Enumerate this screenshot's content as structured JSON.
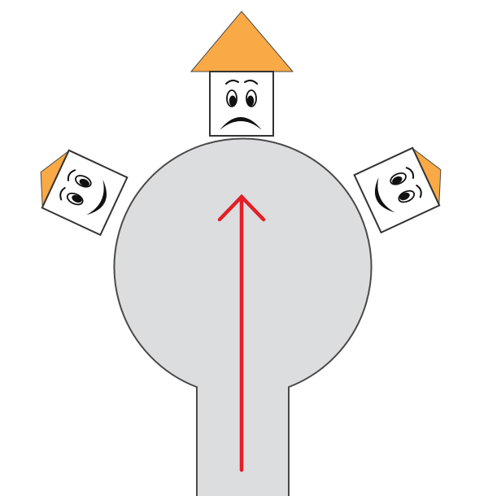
{
  "colors": {
    "road_fill": "#dcdddf",
    "road_stroke": "#4a4a4a",
    "arrow": "#e31e24",
    "roof": "#f9a945",
    "roof_stroke": "#4a4a4a",
    "house_fill": "#ffffff",
    "house_stroke": "#333333",
    "face_ink": "#111111"
  },
  "roundabout": {
    "shape": "circular-cul-de-sac-with-entry-road",
    "arrow_direction": "up"
  },
  "houses": [
    {
      "id": "left",
      "mood": "happy",
      "roof_color": "#f9a945"
    },
    {
      "id": "top",
      "mood": "sad",
      "roof_color": "#f9a945"
    },
    {
      "id": "right",
      "mood": "happy",
      "roof_color": "#f9a945"
    }
  ]
}
